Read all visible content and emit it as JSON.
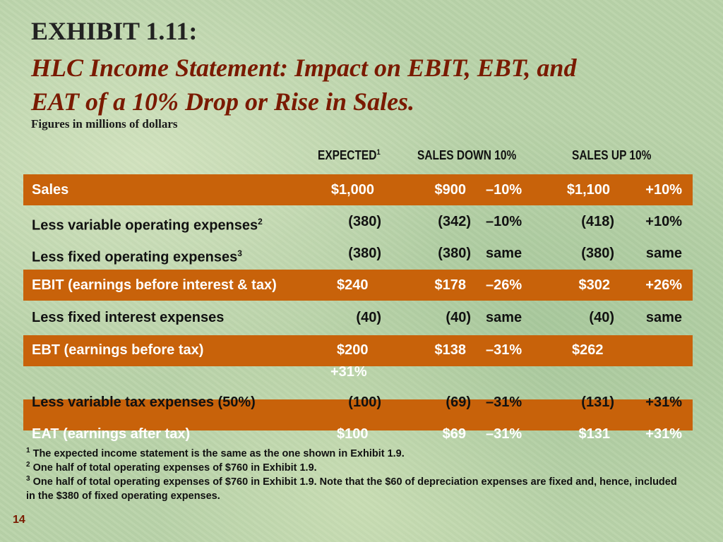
{
  "title": {
    "exhibit": "EXHIBIT 1.11:",
    "subtitle_line1": "HLC Income Statement: Impact on EBIT, EBT, and",
    "subtitle_line2": "EAT of a 10% Drop or Rise in Sales.",
    "units": "Figures in millions of dollars"
  },
  "colors": {
    "band": "#c8620a",
    "title_accent": "#7a1a00",
    "background": "#b9d3a9"
  },
  "columns": {
    "expected": "EXPECTED",
    "expected_note": "1",
    "sales_down": "SALES DOWN 10%",
    "sales_up": "SALES UP 10%"
  },
  "rows": {
    "sales": {
      "label": "Sales",
      "expected": "$1,000",
      "down": "$900",
      "down_pct": "–10%",
      "up": "$1,100",
      "up_pct": "+10%"
    },
    "variable_opex": {
      "label": "Less variable operating expenses",
      "note": "2",
      "expected": "(380)",
      "down": "(342)",
      "down_pct": "–10%",
      "up": "(418)",
      "up_pct": "+10%"
    },
    "fixed_opex": {
      "label": "Less fixed operating expenses",
      "note": "3",
      "expected": "(380)",
      "down": "(380)",
      "down_pct": "same",
      "up": "(380)",
      "up_pct": "same"
    },
    "ebit": {
      "label": "EBIT (earnings before interest & tax)",
      "expected": "$240",
      "down": "$178",
      "down_pct": "–26%",
      "up": "$302",
      "up_pct": "+26%"
    },
    "interest": {
      "label": "Less fixed interest expenses",
      "expected": "(40)",
      "down": "(40)",
      "down_pct": "same",
      "up": "(40)",
      "up_pct": "same"
    },
    "ebt": {
      "label": "EBT (earnings before tax)",
      "expected": "$200",
      "down": "$138",
      "down_pct": "–31%",
      "up": "$262",
      "up_pct": "+31%"
    },
    "tax": {
      "label": "Less variable tax expenses (50%)",
      "expected": "(100)",
      "down": "(69)",
      "down_pct": "–31%",
      "up": "(131)",
      "up_pct": "+31%"
    },
    "eat": {
      "label": "EAT (earnings after tax)",
      "expected": "$100",
      "down": "$69",
      "down_pct": "–31%",
      "up": "$131",
      "up_pct": "+31%"
    }
  },
  "footnotes": {
    "n1_mark": "1",
    "n1": "The expected income statement is the same as the one shown in Exhibit 1.9.",
    "n2_mark": "2",
    "n2": "One half of total operating expenses of $760 in Exhibit 1.9.",
    "n3_mark": "3",
    "n3": "One half of total operating expenses of $760 in Exhibit 1.9. Note that the $60 of depreciation expenses are fixed and, hence, included in the $380 of fixed operating expenses."
  },
  "page_number": "14"
}
